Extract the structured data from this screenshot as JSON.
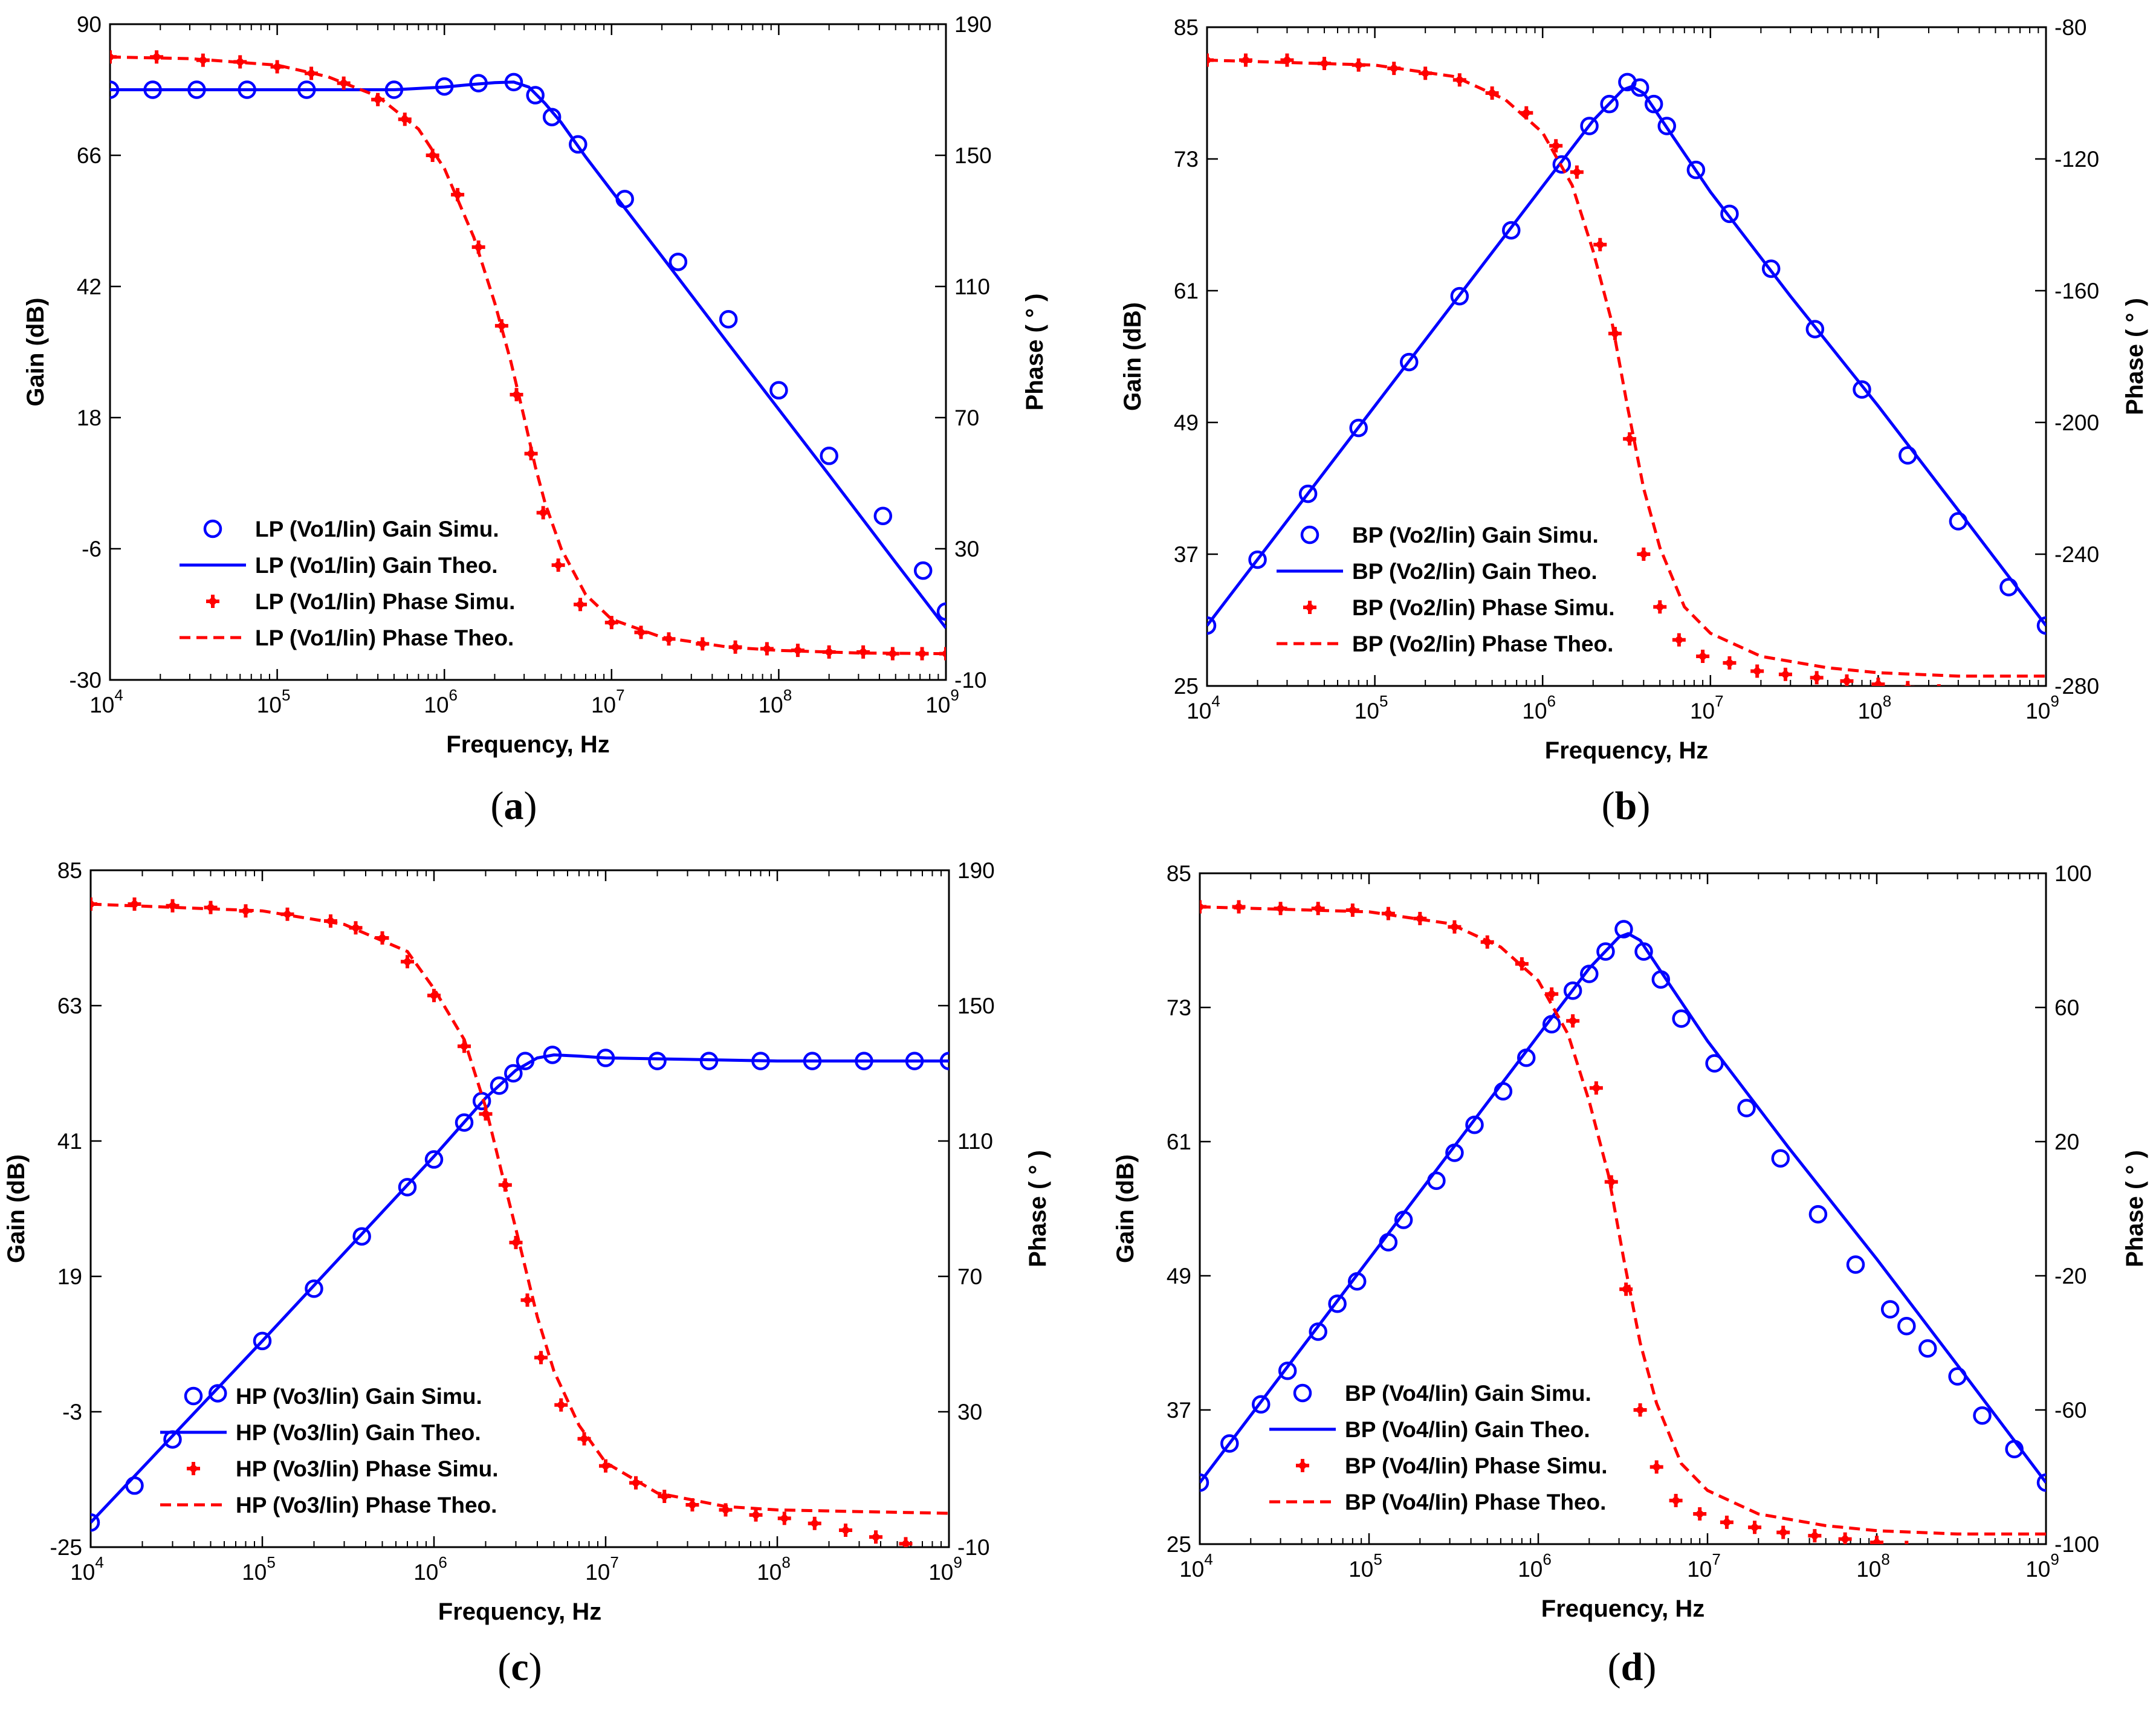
{
  "chart_data": [
    {
      "type": "line",
      "caption_letter": "a",
      "xlabel": "Frequency, Hz",
      "ylabel_left": "Gain (dB)",
      "ylabel_right": "Phase ( ° )",
      "x_scale": "log",
      "xlim": [
        10000,
        1000000000
      ],
      "x_tick_labels": [
        "10^4",
        "10^5",
        "10^6",
        "10^7",
        "10^8",
        "10^9"
      ],
      "y_left_lim": [
        -30,
        90
      ],
      "y_left_ticks": [
        -30,
        -6,
        18,
        42,
        66,
        90
      ],
      "y_right_lim": [
        -10,
        190
      ],
      "y_right_ticks": [
        -10,
        30,
        70,
        110,
        150,
        190
      ],
      "legend_location": "lower-left",
      "series": [
        {
          "name": "LP (Vo1/Iin) Gain Simu.",
          "axis": "left",
          "style": "circle",
          "color": "#0000ff",
          "x": [
            10000,
            18000,
            33000,
            66000,
            150000,
            500000,
            1000000,
            1600000,
            2600000,
            3500000,
            4400000,
            6300000,
            12000000,
            25000000,
            50000000,
            100000000,
            200000000,
            420000000,
            730000000,
            1000000000
          ],
          "y": [
            78,
            78,
            78,
            78,
            78,
            78,
            78.6,
            79.2,
            79.4,
            77,
            73,
            68,
            58,
            46.5,
            36,
            23,
            11,
            0,
            -10,
            -17.5
          ]
        },
        {
          "name": "LP (Vo1/Iin) Gain Theo.",
          "axis": "left",
          "style": "solid",
          "color": "#0000ff",
          "x": [
            10000,
            100000,
            500000,
            1000000,
            1500000,
            2000000,
            2600000,
            3200000,
            4000000,
            5000000,
            7000000,
            10000000,
            20000000,
            50000000,
            100000000,
            200000000,
            500000000,
            1000000000
          ],
          "y": [
            78,
            78,
            78,
            78.5,
            79,
            79.3,
            79.4,
            78.5,
            75.5,
            72,
            65.7,
            59.5,
            47.5,
            31.5,
            19.5,
            7.5,
            -8.5,
            -20.5
          ]
        },
        {
          "name": "LP (Vo1/Iin) Phase Simu.",
          "axis": "right",
          "style": "star",
          "color": "#ff0000",
          "x": [
            10000,
            19000,
            36000,
            60000,
            100000,
            160000,
            250000,
            400000,
            580000,
            850000,
            1200000,
            1600000,
            2200000,
            2700000,
            3300000,
            3900000,
            4800000,
            6500000,
            10000000,
            15000000,
            22000000,
            35000000,
            55000000,
            85000000,
            130000000,
            200000000,
            320000000,
            480000000,
            720000000,
            1000000000
          ],
          "y": [
            180,
            180,
            179,
            178.5,
            177,
            175,
            172,
            167,
            161,
            150,
            138,
            122,
            98,
            77,
            59,
            41,
            25,
            13,
            7.5,
            4.5,
            2.5,
            1,
            0,
            -0.5,
            -1,
            -1.5,
            -1.5,
            -2,
            -2,
            -2
          ]
        },
        {
          "name": "LP (Vo1/Iin) Phase Theo.",
          "axis": "right",
          "style": "dashed",
          "color": "#ff0000",
          "x": [
            10000,
            30000,
            100000,
            200000,
            400000,
            700000,
            1000000,
            1500000,
            2000000,
            2500000,
            3000000,
            3500000,
            4000000,
            5000000,
            7000000,
            10000000,
            20000000,
            50000000,
            100000000,
            300000000,
            1000000000
          ],
          "y": [
            180,
            179.5,
            177.5,
            174,
            168,
            158,
            146,
            125,
            105,
            87,
            70,
            55,
            44,
            30,
            16,
            8.5,
            3,
            0,
            -1,
            -1.8,
            -2
          ]
        }
      ]
    },
    {
      "type": "line",
      "caption_letter": "b",
      "xlabel": "Frequency, Hz",
      "ylabel_left": "Gain (dB)",
      "ylabel_right": "Phase ( ° )",
      "x_scale": "log",
      "xlim": [
        10000,
        1000000000
      ],
      "x_tick_labels": [
        "10^4",
        "10^5",
        "10^6",
        "10^7",
        "10^8",
        "10^9"
      ],
      "y_left_lim": [
        25,
        85
      ],
      "y_left_ticks": [
        25,
        37,
        49,
        61,
        73,
        85
      ],
      "y_right_lim": [
        -280,
        -80
      ],
      "y_right_ticks": [
        -280,
        -240,
        -200,
        -160,
        -120,
        -80
      ],
      "legend_location": "lower-left",
      "series": [
        {
          "name": "BP (Vo2/Iin) Gain Simu.",
          "axis": "left",
          "style": "circle",
          "color": "#0000ff",
          "x": [
            10000,
            20000,
            40000,
            80000,
            160000,
            320000,
            650000,
            1300000,
            1900000,
            2500000,
            3200000,
            3800000,
            4600000,
            5500000,
            8200000,
            13000000,
            23000000,
            42000000,
            80000000,
            150000000,
            300000000,
            600000000,
            1000000000
          ],
          "y": [
            30.5,
            36.5,
            42.5,
            48.5,
            54.5,
            60.5,
            66.5,
            72.5,
            76,
            78,
            80,
            79.5,
            78,
            76,
            72,
            68,
            63,
            57.5,
            52,
            46,
            40,
            34,
            30.5
          ]
        },
        {
          "name": "BP (Vo2/Iin) Gain Theo.",
          "axis": "left",
          "style": "solid",
          "color": "#0000ff",
          "x": [
            10000,
            100000,
            1000000,
            2000000,
            3000000,
            3400000,
            4000000,
            6000000,
            10000000,
            30000000,
            100000000,
            300000000,
            1000000000
          ],
          "y": [
            30.5,
            50.5,
            70.5,
            76.5,
            79.3,
            79.6,
            79,
            75,
            70,
            60.5,
            50.5,
            41,
            30.5
          ]
        },
        {
          "name": "BP (Vo2/Iin) Phase Simu.",
          "axis": "right",
          "style": "star",
          "color": "#ff0000",
          "x": [
            10000,
            17000,
            30000,
            50000,
            80000,
            130000,
            200000,
            320000,
            500000,
            800000,
            1200000,
            1600000,
            2200000,
            2700000,
            3300000,
            4000000,
            5000000,
            6500000,
            9000000,
            13000000,
            19000000,
            28000000,
            43000000,
            65000000,
            100000000,
            150000000,
            230000000,
            350000000,
            520000000,
            780000000,
            1000000000
          ],
          "y": [
            -90,
            -90,
            -90,
            -91,
            -91.5,
            -92.5,
            -94,
            -96,
            -100,
            -106,
            -116,
            -124,
            -146,
            -173,
            -205,
            -240,
            -256,
            -266,
            -271,
            -273,
            -275.5,
            -276.5,
            -277.5,
            -278.5,
            -279.5,
            -280.5,
            -281.5,
            -283,
            -284,
            -286,
            -288
          ]
        },
        {
          "name": "BP (Vo2/Iin) Phase Theo.",
          "axis": "right",
          "style": "dashed",
          "color": "#ff0000",
          "x": [
            10000,
            100000,
            300000,
            600000,
            1000000,
            1500000,
            2000000,
            2600000,
            3200000,
            4000000,
            5000000,
            7000000,
            10000000,
            20000000,
            50000000,
            100000000,
            300000000,
            1000000000
          ],
          "y": [
            -90,
            -91.5,
            -95,
            -102,
            -112,
            -128,
            -148,
            -170,
            -195,
            -220,
            -238,
            -256,
            -264,
            -271,
            -274.5,
            -276,
            -277,
            -277
          ]
        }
      ]
    },
    {
      "type": "line",
      "caption_letter": "c",
      "xlabel": "Frequency, Hz",
      "ylabel_left": "Gain (dB)",
      "ylabel_right": "Phase ( ° )",
      "x_scale": "log",
      "xlim": [
        10000,
        1000000000
      ],
      "x_tick_labels": [
        "10^4",
        "10^5",
        "10^6",
        "10^7",
        "10^8",
        "10^9"
      ],
      "y_left_lim": [
        -25,
        85
      ],
      "y_left_ticks": [
        -25,
        -3,
        19,
        41,
        63,
        85
      ],
      "y_right_lim": [
        -10,
        190
      ],
      "y_right_ticks": [
        -10,
        30,
        70,
        110,
        150,
        190
      ],
      "legend_location": "lower-left",
      "series": [
        {
          "name": "HP (Vo3/Iin) Gain Simu.",
          "axis": "left",
          "style": "circle",
          "color": "#0000ff",
          "x": [
            10000,
            18000,
            30000,
            55000,
            100000,
            200000,
            380000,
            700000,
            1000000,
            1500000,
            1900000,
            2400000,
            2900000,
            3400000,
            4900000,
            10000000,
            20000000,
            40000000,
            80000000,
            160000000,
            320000000,
            630000000,
            1000000000
          ],
          "y": [
            -21,
            -15,
            -7.5,
            0,
            8.5,
            17,
            25.5,
            33.5,
            38,
            44,
            47.5,
            50,
            52,
            54,
            55,
            54.5,
            54,
            54,
            54,
            54,
            54,
            54,
            54
          ]
        },
        {
          "name": "HP (Vo3/Iin) Gain Theo.",
          "axis": "left",
          "style": "solid",
          "color": "#0000ff",
          "x": [
            10000,
            100000,
            1000000,
            2000000,
            3000000,
            4000000,
            5000000,
            7000000,
            10000000,
            100000000,
            1000000000
          ],
          "y": [
            -21,
            8.5,
            38.5,
            48,
            52.5,
            54.5,
            55,
            54.8,
            54.5,
            54,
            54
          ]
        },
        {
          "name": "HP (Vo3/Iin) Phase Simu.",
          "axis": "right",
          "style": "star",
          "color": "#ff0000",
          "x": [
            10000,
            18000,
            30000,
            50000,
            80000,
            140000,
            250000,
            350000,
            500000,
            700000,
            1000000,
            1500000,
            2000000,
            2600000,
            3000000,
            3500000,
            4200000,
            5500000,
            7500000,
            10000000,
            15000000,
            22000000,
            32000000,
            50000000,
            75000000,
            110000000,
            165000000,
            250000000,
            375000000,
            560000000
          ],
          "y": [
            180,
            180,
            179.5,
            179,
            178,
            177,
            175,
            173,
            170,
            163,
            153,
            138,
            118,
            97,
            80,
            63,
            46,
            32,
            22,
            14,
            9,
            5,
            2.5,
            1,
            -0.5,
            -1.5,
            -3,
            -5,
            -7,
            -9
          ]
        },
        {
          "name": "HP (Vo3/Iin) Phase Theo.",
          "axis": "right",
          "style": "dashed",
          "color": "#ff0000",
          "x": [
            10000,
            100000,
            300000,
            700000,
            1000000,
            1500000,
            2000000,
            2500000,
            3000000,
            4000000,
            5000000,
            7000000,
            10000000,
            20000000,
            50000000,
            100000000,
            300000000,
            1000000000
          ],
          "y": [
            180,
            178,
            174,
            166,
            155,
            140,
            120,
            100,
            84,
            58,
            42,
            26,
            15,
            6,
            2,
            1,
            0.5,
            0
          ]
        }
      ]
    },
    {
      "type": "line",
      "caption_letter": "d",
      "xlabel": "Frequency, Hz",
      "ylabel_left": "Gain (dB)",
      "ylabel_right": "Phase ( ° )",
      "x_scale": "log",
      "xlim": [
        10000,
        1000000000
      ],
      "x_tick_labels": [
        "10^4",
        "10^5",
        "10^6",
        "10^7",
        "10^8",
        "10^9"
      ],
      "y_left_lim": [
        25,
        85
      ],
      "y_left_ticks": [
        25,
        37,
        49,
        61,
        73,
        85
      ],
      "y_right_lim": [
        -100,
        100
      ],
      "y_right_ticks": [
        -100,
        -60,
        -20,
        20,
        60,
        100
      ],
      "legend_location": "lower-left",
      "series": [
        {
          "name": "BP (Vo4/Iin) Gain Simu.",
          "axis": "left",
          "style": "circle",
          "color": "#0000ff",
          "x": [
            10000,
            15000,
            23000,
            33000,
            50000,
            65000,
            85000,
            130000,
            160000,
            250000,
            320000,
            420000,
            620000,
            850000,
            1200000,
            1600000,
            2000000,
            2500000,
            3200000,
            4200000,
            5300000,
            7000000,
            11000000,
            17000000,
            27000000,
            45000000,
            75000000,
            120000000,
            150000000,
            200000000,
            300000000,
            420000000,
            650000000,
            1000000000
          ],
          "y": [
            30.5,
            34,
            37.5,
            40.5,
            44,
            46.5,
            48.5,
            52,
            54,
            57.5,
            60,
            62.5,
            65.5,
            68.5,
            71.5,
            74.5,
            76,
            78,
            80,
            78,
            75.5,
            72,
            68,
            64,
            59.5,
            54.5,
            50,
            46,
            44.5,
            42.5,
            40,
            36.5,
            33.5,
            30.5
          ]
        },
        {
          "name": "BP (Vo4/Iin) Gain Theo.",
          "axis": "left",
          "style": "solid",
          "color": "#0000ff",
          "x": [
            10000,
            100000,
            1000000,
            2000000,
            3000000,
            3400000,
            4000000,
            6000000,
            10000000,
            30000000,
            100000000,
            300000000,
            1000000000
          ],
          "y": [
            30.5,
            50.5,
            70.5,
            76.5,
            79.3,
            79.6,
            79,
            75,
            70,
            60.5,
            50.5,
            41,
            30.5
          ]
        },
        {
          "name": "BP (Vo4/Iin) Phase Simu.",
          "axis": "right",
          "style": "star",
          "color": "#ff0000",
          "x": [
            10000,
            17000,
            30000,
            50000,
            80000,
            130000,
            200000,
            320000,
            500000,
            800000,
            1200000,
            1600000,
            2200000,
            2700000,
            3300000,
            4000000,
            5000000,
            6500000,
            9000000,
            13000000,
            19000000,
            28000000,
            43000000,
            65000000,
            100000000,
            150000000,
            230000000,
            350000000,
            520000000,
            780000000,
            1000000000
          ],
          "y": [
            90,
            90,
            89.5,
            89.5,
            89,
            88,
            86.5,
            84,
            79.5,
            73,
            64,
            56,
            36,
            8,
            -24,
            -60,
            -77,
            -87,
            -91,
            -93.5,
            -95,
            -96.5,
            -97.5,
            -98.5,
            -99.5,
            -101,
            -102,
            -103,
            -105,
            -107,
            -108
          ]
        },
        {
          "name": "BP (Vo4/Iin) Phase Theo.",
          "axis": "right",
          "style": "dashed",
          "color": "#ff0000",
          "x": [
            10000,
            100000,
            300000,
            600000,
            1000000,
            1500000,
            2000000,
            2600000,
            3200000,
            4000000,
            5000000,
            7000000,
            10000000,
            20000000,
            50000000,
            100000000,
            300000000,
            1000000000
          ],
          "y": [
            90,
            88.5,
            85,
            78,
            68,
            52,
            32,
            10,
            -15,
            -40,
            -58,
            -76,
            -84,
            -91,
            -94.5,
            -96,
            -97,
            -97
          ]
        }
      ]
    }
  ]
}
